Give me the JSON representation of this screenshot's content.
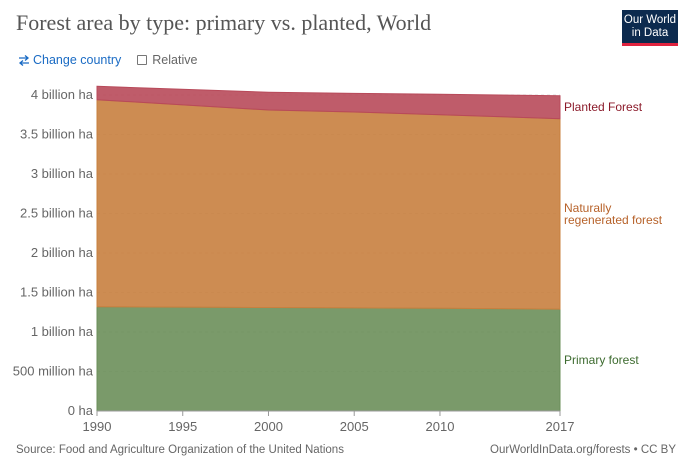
{
  "header": {
    "title": "Forest area by type: primary vs. planted, World",
    "logo_line1": "Our World",
    "logo_line2": "in Data"
  },
  "controls": {
    "change_country": "Change country",
    "change_country_icon": "swap-arrows-icon",
    "relative": "Relative",
    "relative_checked": false
  },
  "footer": {
    "source": "Source: Food and Agriculture Organization of the United Nations",
    "credit": "OurWorldInData.org/forests • CC BY"
  },
  "chart_data": {
    "type": "area",
    "stacked": true,
    "x": [
      1990,
      2000,
      2005,
      2010,
      2017
    ],
    "x_ticks": [
      "1990",
      "1995",
      "2000",
      "2005",
      "2010",
      "2017"
    ],
    "y_ticks": [
      "0 ha",
      "500 million ha",
      "1 billion ha",
      "1.5 billion ha",
      "2 billion ha",
      "2.5 billion ha",
      "3 billion ha",
      "3.5 billion ha",
      "4 billion ha"
    ],
    "ylim": [
      0,
      4000000000
    ],
    "xlim": [
      1990,
      2017
    ],
    "grid": "horizontal dashed",
    "series": [
      {
        "name": "Primary forest",
        "color": "#6b8f5a",
        "label_color": "#3d6b2f",
        "values": [
          1320000000,
          1310000000,
          1305000000,
          1300000000,
          1290000000
        ]
      },
      {
        "name": "Naturally regenerated forest",
        "color": "#c8803f",
        "label_color": "#b7622a",
        "values": [
          2620000000,
          2500000000,
          2480000000,
          2450000000,
          2410000000
        ]
      },
      {
        "name": "Planted Forest",
        "color": "#b84a5a",
        "label_color": "#8b1a2a",
        "values": [
          170000000,
          225000000,
          235000000,
          260000000,
          290000000
        ]
      }
    ],
    "legend": "inline labels at right"
  }
}
